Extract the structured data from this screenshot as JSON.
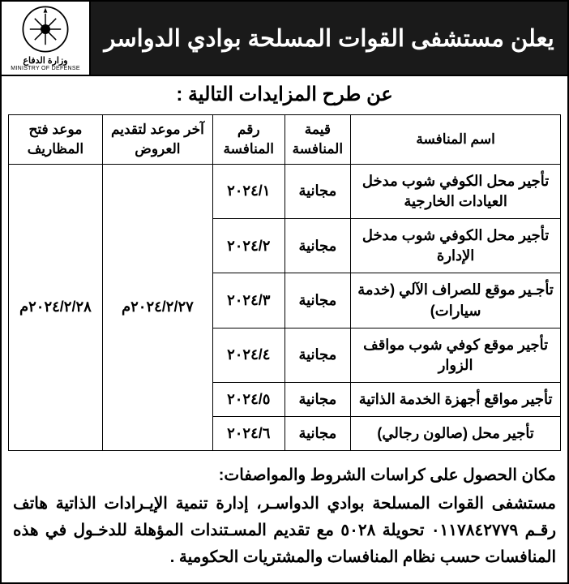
{
  "header": {
    "title": "يعلن مستشفى القوات المسلحة بوادي الدواسر",
    "subtitle": "عن طرح المزايدات التالية :",
    "logo_ar": "وزارة الدفاع",
    "logo_en": "MINISTRY OF DEFENSE"
  },
  "table": {
    "columns": {
      "name": "اسم المنافسة",
      "value": "قيمة المنافسة",
      "number": "رقم المنافسة",
      "deadline": "آخر موعد لتقديم العروض",
      "opening": "موعد فتح المظاريف"
    },
    "free_label": "مجانية",
    "deadline_value": "٢٠٢٤/٢/٢٧م",
    "opening_value": "٢٠٢٤/٢/٢٨م",
    "rows": [
      {
        "name": "تأجير محل الكوفي شوب مدخل العيادات الخارجية",
        "number": "٢٠٢٤/١"
      },
      {
        "name": "تأجير محل الكوفي شوب مدخل الإدارة",
        "number": "٢٠٢٤/٢"
      },
      {
        "name": "تأجـير موقع للصراف الآلي (خدمة سيارات)",
        "number": "٢٠٢٤/٣"
      },
      {
        "name": "تأجير موقع كوفي شوب مواقف الزوار",
        "number": "٢٠٢٤/٤"
      },
      {
        "name": "تأجير مواقع أجهزة الخدمة الذاتية",
        "number": "٢٠٢٤/٥"
      },
      {
        "name": "تأجير محل (صالون رجالي)",
        "number": "٢٠٢٤/٦"
      }
    ]
  },
  "footer": {
    "title": "مكان الحصول على كراسات الشروط والمواصفات:",
    "body": "مستشفى القوات المسلحة بوادي الدواسـر، إدارة تنمية الإيـرادات الذاتية هاتف رقـم ٠١١٧٨٤٢٧٧٩ تحويلة ٥٠٢٨ مع تقديم المسـتندات المؤهلة للدخـول في هذه المنافسات حسب نظام المنافسات والمشتريات الحكومية .",
    "colors": {
      "bg": "#ffffff",
      "header_bg": "#1a1a1a",
      "text": "#000000",
      "border": "#000000"
    }
  }
}
